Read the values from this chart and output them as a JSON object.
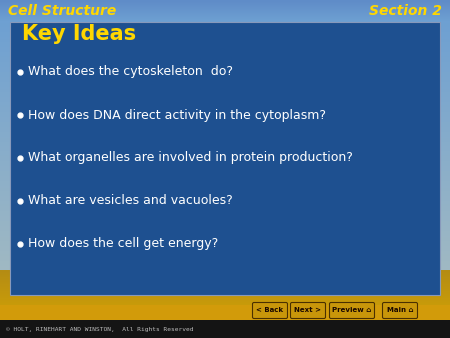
{
  "header_left": "Cell Structure",
  "header_right": "Section 2",
  "header_color": "#FFD700",
  "box_bg": "#1E5090",
  "box_title": "Key Ideas",
  "box_title_color": "#FFD700",
  "bullet_color": "#FFFFFF",
  "bullet_items": [
    "What does the cytoskeleton  do?",
    "How does DNA direct activity in the cytoplasm?",
    "What organelles are involved in protein production?",
    "What are vesicles and vacuoles?",
    "How does the cell get energy?"
  ],
  "footer_text": "© HOLT, RINEHART AND WINSTON,  All Rights Reserved",
  "nav_buttons": [
    "< Back",
    "Next >",
    "Preview  ⌂",
    "Main  ⌂"
  ],
  "fig_w": 4.5,
  "fig_h": 3.38,
  "dpi": 100
}
